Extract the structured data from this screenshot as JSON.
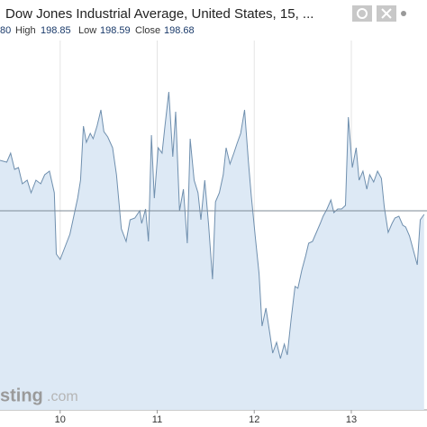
{
  "chart_data": {
    "type": "area",
    "title": "Dow Jones Industrial Average, United States, 15, ...",
    "ohlc": {
      "open": "80",
      "high_label": "High",
      "high": 198.85,
      "low_label": "Low",
      "low": 198.59,
      "close_label": "Close",
      "close": 198.68
    },
    "watermark": [
      "sting",
      ".com"
    ],
    "color": "#6f8fae",
    "fill": "#dde9f5",
    "price_line": 198.68,
    "xlim": [
      9.38,
      13.78
    ],
    "xticks": [
      10,
      11,
      12,
      13
    ],
    "ylim": [
      197.6,
      199.6
    ],
    "x": [
      9.38,
      9.45,
      9.49,
      9.53,
      9.57,
      9.61,
      9.66,
      9.7,
      9.75,
      9.8,
      9.84,
      9.89,
      9.94,
      9.96,
      10.0,
      10.05,
      10.1,
      10.14,
      10.18,
      10.21,
      10.24,
      10.27,
      10.31,
      10.34,
      10.38,
      10.42,
      10.45,
      10.49,
      10.54,
      10.58,
      10.63,
      10.68,
      10.72,
      10.77,
      10.82,
      10.84,
      10.88,
      10.91,
      10.94,
      10.97,
      11.01,
      11.05,
      11.08,
      11.12,
      11.16,
      11.19,
      11.23,
      11.27,
      11.31,
      11.34,
      11.38,
      11.42,
      11.45,
      11.49,
      11.53,
      11.57,
      11.6,
      11.64,
      11.68,
      11.71,
      11.75,
      11.79,
      11.82,
      11.86,
      11.9,
      11.94,
      11.97,
      12.01,
      12.05,
      12.08,
      12.12,
      12.16,
      12.19,
      12.23,
      12.27,
      12.31,
      12.34,
      12.38,
      12.42,
      12.45,
      12.49,
      12.53,
      12.56,
      12.6,
      12.64,
      12.68,
      12.71,
      12.75,
      12.79,
      12.82,
      12.86,
      12.9,
      12.94,
      12.97,
      13.01,
      13.05,
      13.08,
      13.12,
      13.16,
      13.19,
      13.23,
      13.27,
      13.31,
      13.34,
      13.38,
      13.42,
      13.45,
      13.49,
      13.53,
      13.56,
      13.6,
      13.64,
      13.68,
      13.71,
      13.75
    ],
    "values": [
      198.96,
      198.95,
      199.0,
      198.91,
      198.92,
      198.83,
      198.85,
      198.78,
      198.85,
      198.83,
      198.88,
      198.9,
      198.78,
      198.44,
      198.41,
      198.48,
      198.55,
      198.65,
      198.75,
      198.85,
      199.15,
      199.06,
      199.11,
      199.08,
      199.15,
      199.24,
      199.12,
      199.09,
      199.03,
      198.88,
      198.58,
      198.51,
      198.63,
      198.64,
      198.68,
      198.61,
      198.69,
      198.51,
      199.1,
      198.75,
      199.03,
      199.0,
      199.15,
      199.34,
      198.98,
      199.23,
      198.68,
      198.8,
      198.5,
      199.08,
      198.85,
      198.78,
      198.63,
      198.85,
      198.6,
      198.3,
      198.73,
      198.78,
      198.88,
      199.03,
      198.94,
      199.0,
      199.05,
      199.11,
      199.24,
      198.95,
      198.76,
      198.54,
      198.33,
      198.04,
      198.14,
      198.0,
      197.89,
      197.95,
      197.86,
      197.94,
      197.88,
      198.08,
      198.26,
      198.25,
      198.35,
      198.43,
      198.5,
      198.51,
      198.56,
      198.61,
      198.65,
      198.69,
      198.74,
      198.67,
      198.69,
      198.69,
      198.71,
      199.2,
      198.92,
      199.03,
      198.85,
      198.9,
      198.8,
      198.88,
      198.84,
      198.9,
      198.86,
      198.7,
      198.56,
      198.61,
      198.64,
      198.65,
      198.6,
      198.59,
      198.54,
      198.46,
      198.38,
      198.63,
      198.66
    ]
  }
}
